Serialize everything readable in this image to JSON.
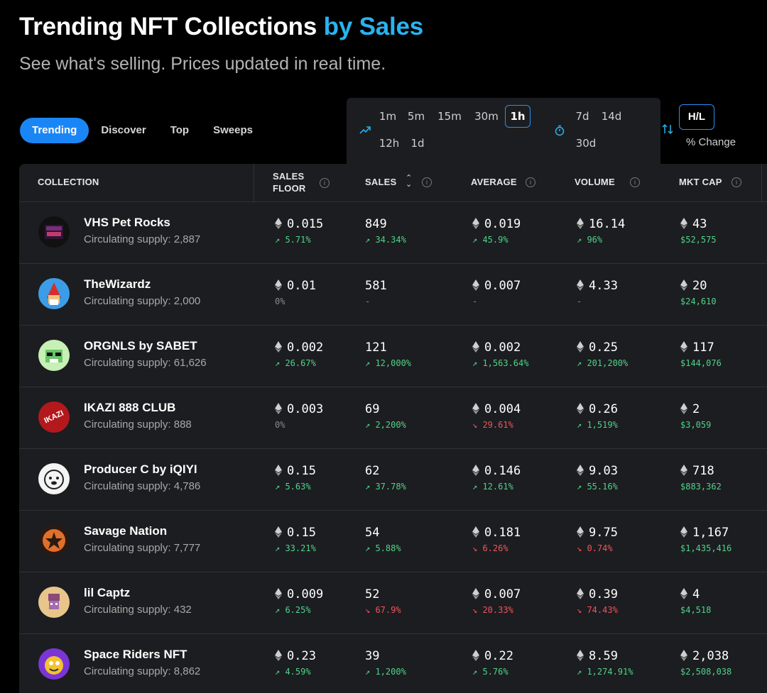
{
  "header": {
    "title_main": "Trending NFT Collections",
    "title_accent": "by Sales",
    "subtitle": "See what's selling. Prices updated in real time."
  },
  "tabs": [
    {
      "label": "Trending",
      "active": true
    },
    {
      "label": "Discover",
      "active": false
    },
    {
      "label": "Top",
      "active": false
    },
    {
      "label": "Sweeps",
      "active": false
    }
  ],
  "time_filters": {
    "trending_icon": "trending-up-icon",
    "row1": [
      "1m",
      "5m",
      "15m",
      "30m",
      "1h"
    ],
    "row2": [
      "12h",
      "1d"
    ],
    "selected": "1h",
    "extended_icon": "stopwatch-icon",
    "extended_row1": [
      "7d",
      "14d"
    ],
    "extended_row2": [
      "30d"
    ]
  },
  "sort_toggle": {
    "icon": "swap-arrows-icon",
    "hl_label": "H/L",
    "pct_label": "% Change"
  },
  "colors": {
    "accent": "#29b3f0",
    "active_tab": "#1a86f5",
    "up": "#4ed38a",
    "down": "#f0545c"
  },
  "table": {
    "headers": {
      "collection": "COLLECTION",
      "sales_floor_1": "SALES",
      "sales_floor_2": "FLOOR",
      "sales": "SALES",
      "average": "AVERAGE",
      "volume": "VOLUME",
      "mkt_cap": "MKT CAP"
    },
    "rows": [
      {
        "name": "VHS Pet Rocks",
        "supply": "Circulating supply: 2,887",
        "floor": "0.015",
        "floor_chg": "↗ 5.71%",
        "floor_dir": "up",
        "sales": "849",
        "sales_chg": "↗ 34.34%",
        "sales_dir": "up",
        "avg": "0.019",
        "avg_chg": "↗ 45.9%",
        "avg_dir": "up",
        "vol": "16.14",
        "vol_chg": "↗ 96%",
        "vol_dir": "up",
        "cap": "43",
        "cap_usd": "$52,575"
      },
      {
        "name": "TheWizardz",
        "supply": "Circulating supply: 2,000",
        "floor": "0.01",
        "floor_chg": "0%",
        "floor_dir": "flat",
        "sales": "581",
        "sales_chg": "-",
        "sales_dir": "flat",
        "avg": "0.007",
        "avg_chg": "-",
        "avg_dir": "flat",
        "vol": "4.33",
        "vol_chg": "-",
        "vol_dir": "flat",
        "cap": "20",
        "cap_usd": "$24,610"
      },
      {
        "name": "ORGNLS by SABET",
        "supply": "Circulating supply: 61,626",
        "floor": "0.002",
        "floor_chg": "↗ 26.67%",
        "floor_dir": "up",
        "sales": "121",
        "sales_chg": "↗ 12,000%",
        "sales_dir": "up",
        "avg": "0.002",
        "avg_chg": "↗ 1,563.64%",
        "avg_dir": "up",
        "vol": "0.25",
        "vol_chg": "↗ 201,200%",
        "vol_dir": "up",
        "cap": "117",
        "cap_usd": "$144,076"
      },
      {
        "name": "IKAZI 888 CLUB",
        "supply": "Circulating supply: 888",
        "floor": "0.003",
        "floor_chg": "0%",
        "floor_dir": "flat",
        "sales": "69",
        "sales_chg": "↗ 2,200%",
        "sales_dir": "up",
        "avg": "0.004",
        "avg_chg": "↘ 29.61%",
        "avg_dir": "down",
        "vol": "0.26",
        "vol_chg": "↗ 1,519%",
        "vol_dir": "up",
        "cap": "2",
        "cap_usd": "$3,059"
      },
      {
        "name": "Producer C by iQIYI",
        "supply": "Circulating supply: 4,786",
        "floor": "0.15",
        "floor_chg": "↗ 5.63%",
        "floor_dir": "up",
        "sales": "62",
        "sales_chg": "↗ 37.78%",
        "sales_dir": "up",
        "avg": "0.146",
        "avg_chg": "↗ 12.61%",
        "avg_dir": "up",
        "vol": "9.03",
        "vol_chg": "↗ 55.16%",
        "vol_dir": "up",
        "cap": "718",
        "cap_usd": "$883,362"
      },
      {
        "name": "Savage Nation",
        "supply": "Circulating supply: 7,777",
        "floor": "0.15",
        "floor_chg": "↗ 33.21%",
        "floor_dir": "up",
        "sales": "54",
        "sales_chg": "↗ 5.88%",
        "sales_dir": "up",
        "avg": "0.181",
        "avg_chg": "↘ 6.26%",
        "avg_dir": "down",
        "vol": "9.75",
        "vol_chg": "↘ 0.74%",
        "vol_dir": "down",
        "cap": "1,167",
        "cap_usd": "$1,435,416"
      },
      {
        "name": "lil Captz",
        "supply": "Circulating supply: 432",
        "floor": "0.009",
        "floor_chg": "↗ 6.25%",
        "floor_dir": "up",
        "sales": "52",
        "sales_chg": "↘ 67.9%",
        "sales_dir": "down",
        "avg": "0.007",
        "avg_chg": "↘ 20.33%",
        "avg_dir": "down",
        "vol": "0.39",
        "vol_chg": "↘ 74.43%",
        "vol_dir": "down",
        "cap": "4",
        "cap_usd": "$4,518"
      },
      {
        "name": "Space Riders NFT",
        "supply": "Circulating supply: 8,862",
        "floor": "0.23",
        "floor_chg": "↗ 4.59%",
        "floor_dir": "up",
        "sales": "39",
        "sales_chg": "↗ 1,200%",
        "sales_dir": "up",
        "avg": "0.22",
        "avg_chg": "↗ 5.76%",
        "avg_dir": "up",
        "vol": "8.59",
        "vol_chg": "↗ 1,274.91%",
        "vol_dir": "up",
        "cap": "2,038",
        "cap_usd": "$2,508,038"
      }
    ]
  }
}
